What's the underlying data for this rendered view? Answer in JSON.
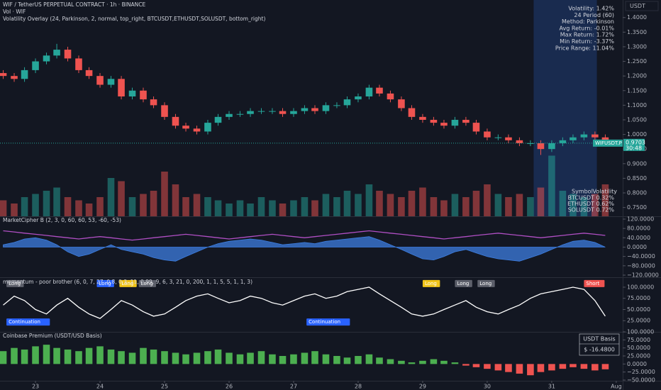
{
  "chart_data": [
    {
      "type": "candlestick",
      "title": "WIF / TetherUS PERPETUAL CONTRACT · 1h · BINANCE",
      "overlay": "Volatility Overlay (24, Parkinson, 2, normal, top_right, BTCUSDT,ETHUSDT,SOLUSDT, bottom_right)",
      "currency": "USDT",
      "x": [
        22.5,
        22.67,
        22.83,
        23,
        23.17,
        23.33,
        23.5,
        23.67,
        23.83,
        24,
        24.17,
        24.33,
        24.5,
        24.67,
        24.83,
        25,
        25.17,
        25.33,
        25.5,
        25.67,
        25.83,
        26,
        26.17,
        26.33,
        26.5,
        26.67,
        26.83,
        27,
        27.17,
        27.33,
        27.5,
        27.67,
        27.83,
        28,
        28.17,
        28.33,
        28.5,
        28.67,
        28.83,
        29,
        29.17,
        29.33,
        29.5,
        29.67,
        29.83,
        30,
        30.17,
        30.33,
        30.5,
        30.67,
        30.83,
        31,
        31.17,
        31.33,
        31.5,
        31.67,
        31.83
      ],
      "open": [
        1.21,
        1.2,
        1.19,
        1.22,
        1.25,
        1.27,
        1.29,
        1.26,
        1.22,
        1.2,
        1.17,
        1.19,
        1.13,
        1.15,
        1.12,
        1.1,
        1.06,
        1.03,
        1.02,
        1.01,
        1.04,
        1.06,
        1.07,
        1.07,
        1.08,
        1.08,
        1.08,
        1.07,
        1.08,
        1.09,
        1.08,
        1.1,
        1.1,
        1.12,
        1.13,
        1.16,
        1.14,
        1.12,
        1.09,
        1.06,
        1.05,
        1.04,
        1.03,
        1.05,
        1.04,
        1.01,
        0.99,
        0.99,
        0.98,
        0.97,
        0.97,
        0.95,
        0.97,
        0.98,
        0.99,
        1.0,
        0.99
      ],
      "high": [
        1.22,
        1.21,
        1.23,
        1.26,
        1.28,
        1.31,
        1.3,
        1.27,
        1.23,
        1.21,
        1.2,
        1.2,
        1.16,
        1.16,
        1.13,
        1.11,
        1.07,
        1.04,
        1.03,
        1.05,
        1.07,
        1.08,
        1.08,
        1.09,
        1.09,
        1.09,
        1.09,
        1.09,
        1.1,
        1.1,
        1.11,
        1.11,
        1.13,
        1.14,
        1.17,
        1.17,
        1.15,
        1.13,
        1.1,
        1.07,
        1.06,
        1.05,
        1.06,
        1.06,
        1.05,
        1.02,
        1.0,
        1.0,
        0.99,
        0.98,
        0.98,
        0.98,
        0.99,
        1.0,
        1.01,
        1.01,
        1.0
      ],
      "low": [
        1.19,
        1.18,
        1.18,
        1.21,
        1.24,
        1.26,
        1.25,
        1.21,
        1.19,
        1.16,
        1.16,
        1.12,
        1.12,
        1.11,
        1.09,
        1.05,
        1.02,
        1.01,
        1.0,
        1.0,
        1.03,
        1.05,
        1.06,
        1.06,
        1.07,
        1.07,
        1.06,
        1.06,
        1.07,
        1.07,
        1.07,
        1.09,
        1.09,
        1.11,
        1.12,
        1.13,
        1.11,
        1.08,
        1.05,
        1.04,
        1.03,
        1.02,
        1.02,
        1.03,
        1.0,
        0.98,
        0.98,
        0.97,
        0.96,
        0.96,
        0.93,
        0.94,
        0.96,
        0.97,
        0.98,
        0.98,
        0.96
      ],
      "close": [
        1.2,
        1.19,
        1.22,
        1.25,
        1.27,
        1.29,
        1.26,
        1.22,
        1.2,
        1.17,
        1.19,
        1.13,
        1.15,
        1.12,
        1.1,
        1.06,
        1.03,
        1.02,
        1.01,
        1.04,
        1.06,
        1.07,
        1.07,
        1.08,
        1.08,
        1.08,
        1.07,
        1.08,
        1.09,
        1.08,
        1.1,
        1.1,
        1.12,
        1.13,
        1.16,
        1.14,
        1.12,
        1.09,
        1.06,
        1.05,
        1.04,
        1.03,
        1.05,
        1.04,
        1.01,
        0.99,
        0.99,
        0.98,
        0.97,
        0.97,
        0.95,
        0.97,
        0.98,
        0.99,
        1.0,
        0.99,
        0.97
      ],
      "up_color": "#26a69a",
      "down_color": "#ef5350",
      "xlim": [
        22.45,
        32.1
      ],
      "ylim": [
        0.72,
        1.46
      ],
      "yticks": [
        {
          "value": 0.75,
          "label": "0.7500"
        },
        {
          "value": 0.8,
          "label": "0.8000"
        },
        {
          "value": 0.85,
          "label": "0.8500"
        },
        {
          "value": 0.9,
          "label": "0.9000"
        },
        {
          "value": 0.95,
          "label": "0.9500"
        },
        {
          "value": 1.0,
          "label": "1.0000"
        },
        {
          "value": 1.05,
          "label": "1.0500"
        },
        {
          "value": 1.1,
          "label": "1.1000"
        },
        {
          "value": 1.15,
          "label": "1.1500"
        },
        {
          "value": 1.2,
          "label": "1.2000"
        },
        {
          "value": 1.25,
          "label": "1.2500"
        },
        {
          "value": 1.3,
          "label": "1.3000"
        },
        {
          "value": 1.35,
          "label": "1.3500"
        },
        {
          "value": 1.4,
          "label": "1.4000"
        }
      ],
      "shaded_x": [
        30.72,
        31.7
      ],
      "last_price": 0.9703,
      "countdown": "30:48",
      "symbol_label": "WIFUSDT.P",
      "volatility_stats": [
        "Volatility: 1.42%",
        "24 Period (60)",
        "Method: Parkinson",
        "Avg Return: -0.01%",
        "Max Return: 1.72%",
        "Min Return: -3.37%",
        "Price Range: 11.04%"
      ],
      "volatility_table": {
        "header": [
          "Symbol",
          "Volatility"
        ],
        "rows": [
          [
            "BTCUSDT",
            "0.32%"
          ],
          [
            "ETHUSDT",
            "0.62%"
          ],
          [
            "SOLUSDT",
            "0.72%"
          ]
        ]
      }
    },
    {
      "type": "bar",
      "title": "Vol · WIF",
      "up_color": "#26a69a80",
      "down_color": "#ef535080",
      "x": [
        22.5,
        22.67,
        22.83,
        23,
        23.17,
        23.33,
        23.5,
        23.67,
        23.83,
        24,
        24.17,
        24.33,
        24.5,
        24.67,
        24.83,
        25,
        25.17,
        25.33,
        25.5,
        25.67,
        25.83,
        26,
        26.17,
        26.33,
        26.5,
        26.67,
        26.83,
        27,
        27.17,
        27.33,
        27.5,
        27.67,
        27.83,
        28,
        28.17,
        28.33,
        28.5,
        28.67,
        28.83,
        29,
        29.17,
        29.33,
        29.5,
        29.67,
        29.83,
        30,
        30.17,
        30.33,
        30.5,
        30.67,
        30.83,
        31,
        31.17,
        31.33,
        31.5,
        31.67,
        31.83
      ],
      "values": [
        25,
        20,
        30,
        35,
        40,
        45,
        30,
        25,
        20,
        30,
        60,
        55,
        30,
        35,
        40,
        70,
        50,
        30,
        35,
        30,
        25,
        20,
        25,
        20,
        30,
        25,
        20,
        25,
        30,
        25,
        35,
        30,
        40,
        35,
        50,
        40,
        35,
        30,
        40,
        45,
        30,
        25,
        35,
        30,
        40,
        50,
        35,
        30,
        35,
        30,
        45,
        95,
        40,
        35,
        30,
        35,
        50
      ],
      "xlim": [
        22.45,
        32.1
      ],
      "ylim": [
        0,
        100
      ]
    },
    {
      "type": "line",
      "title": "MarketCipher B (2, 3, 0, 60, 60, 53, -60, -53)",
      "x": [
        22.5,
        22.67,
        22.83,
        23,
        23.17,
        23.33,
        23.5,
        23.67,
        23.83,
        24,
        24.17,
        24.33,
        24.5,
        24.67,
        24.83,
        25,
        25.17,
        25.33,
        25.5,
        25.67,
        25.83,
        26,
        26.17,
        26.33,
        26.5,
        26.67,
        26.83,
        27,
        27.17,
        27.33,
        27.5,
        27.67,
        27.83,
        28,
        28.17,
        28.33,
        28.5,
        28.67,
        28.83,
        29,
        29.17,
        29.33,
        29.5,
        29.67,
        29.83,
        30,
        30.17,
        30.33,
        30.5,
        30.67,
        30.83,
        31,
        31.17,
        31.33,
        31.5,
        31.67,
        31.83
      ],
      "series": [
        {
          "color": "#3d7ee0",
          "fill": true,
          "values": [
            10,
            20,
            35,
            40,
            30,
            10,
            -20,
            -40,
            -30,
            -10,
            10,
            -10,
            -20,
            -30,
            -45,
            -55,
            -60,
            -40,
            -20,
            0,
            15,
            25,
            30,
            35,
            30,
            20,
            10,
            15,
            20,
            15,
            25,
            30,
            35,
            40,
            45,
            30,
            10,
            -10,
            -30,
            -50,
            -55,
            -40,
            -20,
            -10,
            -25,
            -40,
            -50,
            -55,
            -60,
            -45,
            -30,
            -10,
            10,
            25,
            30,
            20,
            0
          ]
        },
        {
          "color": "#b04fc4",
          "values": [
            70,
            65,
            60,
            55,
            50,
            45,
            40,
            35,
            40,
            45,
            40,
            35,
            30,
            35,
            40,
            45,
            50,
            55,
            50,
            45,
            40,
            35,
            40,
            45,
            50,
            55,
            50,
            45,
            40,
            45,
            50,
            55,
            60,
            65,
            70,
            65,
            60,
            55,
            50,
            45,
            40,
            35,
            40,
            45,
            50,
            55,
            60,
            55,
            50,
            45,
            40,
            45,
            50,
            55,
            60,
            55,
            50
          ]
        }
      ],
      "xlim": [
        22.45,
        32.1
      ],
      "ylim": [
        -120,
        120
      ],
      "yticks": [
        {
          "value": 120,
          "label": "120.0000"
        },
        {
          "value": 80,
          "label": "80.0000"
        },
        {
          "value": 40,
          "label": "40.0000"
        },
        {
          "value": 0,
          "label": "0.0000"
        },
        {
          "value": -40,
          "label": "−40.0000"
        },
        {
          "value": -80,
          "label": "−80.0000"
        },
        {
          "value": -120,
          "label": "−120.0000"
        }
      ]
    },
    {
      "type": "line",
      "title": "momentum - poor brother (6, 0, 7, 27, 0.8, 0.3, 11, 0.99, 9, 6, 3, 21, 0, 200, 1, 1, 5, 5, 1, 1, 3)",
      "x": [
        22.5,
        22.67,
        22.83,
        23,
        23.17,
        23.33,
        23.5,
        23.67,
        23.83,
        24,
        24.17,
        24.33,
        24.5,
        24.67,
        24.83,
        25,
        25.17,
        25.33,
        25.5,
        25.67,
        25.83,
        26,
        26.17,
        26.33,
        26.5,
        26.67,
        26.83,
        27,
        27.17,
        27.33,
        27.5,
        27.67,
        27.83,
        28,
        28.17,
        28.33,
        28.5,
        28.67,
        28.83,
        29,
        29.17,
        29.33,
        29.5,
        29.67,
        29.83,
        30,
        30.17,
        30.33,
        30.5,
        30.67,
        30.83,
        31,
        31.17,
        31.33,
        31.5,
        31.67,
        31.83
      ],
      "series": [
        {
          "color": "#ffffff",
          "values": [
            60,
            80,
            70,
            50,
            40,
            60,
            75,
            55,
            40,
            30,
            50,
            70,
            60,
            45,
            35,
            40,
            55,
            70,
            80,
            85,
            75,
            65,
            70,
            80,
            75,
            65,
            60,
            70,
            80,
            85,
            75,
            80,
            90,
            95,
            100,
            85,
            70,
            55,
            40,
            35,
            40,
            50,
            60,
            70,
            55,
            45,
            40,
            50,
            60,
            75,
            85,
            90,
            95,
            100,
            95,
            70,
            35
          ]
        }
      ],
      "annotations": [
        {
          "text": "Long",
          "x": 22.55,
          "y": 108,
          "color": "#5d606b"
        },
        {
          "text": "Long",
          "x": 23.95,
          "y": 108,
          "color": "#2962ff"
        },
        {
          "text": "Long",
          "x": 24.3,
          "y": 108,
          "color": "#f0c419"
        },
        {
          "text": "Long",
          "x": 24.6,
          "y": 108,
          "color": "#5d606b"
        },
        {
          "text": "Long",
          "x": 29.0,
          "y": 108,
          "color": "#f0c419"
        },
        {
          "text": "Long",
          "x": 29.5,
          "y": 108,
          "color": "#5d606b"
        },
        {
          "text": "Long",
          "x": 29.85,
          "y": 108,
          "color": "#5d606b"
        },
        {
          "text": "Short",
          "x": 31.5,
          "y": 108,
          "color": "#ef5350"
        },
        {
          "text": "Continuation",
          "x": 22.55,
          "y": 22,
          "color": "#2962ff"
        },
        {
          "text": "Continuation",
          "x": 27.2,
          "y": 22,
          "color": "#2962ff"
        }
      ],
      "xlim": [
        22.45,
        32.1
      ],
      "ylim": [
        0,
        119
      ],
      "yticks": [
        {
          "value": 100,
          "label": "100.0000"
        },
        {
          "value": 75,
          "label": "75.0000"
        },
        {
          "value": 50,
          "label": "50.0000"
        },
        {
          "value": 25,
          "label": "25.0000"
        }
      ]
    },
    {
      "type": "bar",
      "title": "Coinbase Premium (USDT/USD Basis)",
      "color": "#4caf50",
      "negative_color": "#ef5350",
      "basis_title": "USDT Basis",
      "basis_label": "$ -16.4800",
      "x": [
        22.5,
        22.67,
        22.83,
        23,
        23.17,
        23.33,
        23.5,
        23.67,
        23.83,
        24,
        24.17,
        24.33,
        24.5,
        24.67,
        24.83,
        25,
        25.17,
        25.33,
        25.5,
        25.67,
        25.83,
        26,
        26.17,
        26.33,
        26.5,
        26.67,
        26.83,
        27,
        27.17,
        27.33,
        27.5,
        27.67,
        27.83,
        28,
        28.17,
        28.33,
        28.5,
        28.67,
        28.83,
        29,
        29.17,
        29.33,
        29.5,
        29.67,
        29.83,
        30,
        30.17,
        30.33,
        30.5,
        30.67,
        30.83,
        31,
        31.17,
        31.33,
        31.5,
        31.67,
        31.83
      ],
      "values": [
        40,
        50,
        45,
        55,
        60,
        50,
        45,
        40,
        50,
        55,
        45,
        40,
        35,
        50,
        45,
        40,
        35,
        30,
        35,
        40,
        45,
        35,
        30,
        35,
        40,
        30,
        25,
        30,
        35,
        40,
        30,
        25,
        20,
        25,
        30,
        20,
        15,
        10,
        5,
        10,
        15,
        10,
        5,
        -5,
        -10,
        -15,
        -20,
        -25,
        -30,
        -35,
        -25,
        -20,
        -15,
        -10,
        -15,
        -20,
        -16.48
      ],
      "xlim": [
        22.45,
        32.1
      ],
      "ylim": [
        -50,
        100
      ],
      "yticks": [
        {
          "value": 100,
          "label": "100.0000"
        },
        {
          "value": 75,
          "label": "75.0000"
        },
        {
          "value": 50,
          "label": "50.0000"
        },
        {
          "value": 25,
          "label": "25.0000"
        },
        {
          "value": 0,
          "label": "0.0000"
        },
        {
          "value": -25,
          "label": "−25.0000"
        },
        {
          "value": -50,
          "label": "−50.0000"
        }
      ],
      "xticks": [
        23,
        24,
        25,
        26,
        27,
        28,
        29,
        30,
        31,
        {
          "value": 32,
          "label": "Aug"
        }
      ]
    }
  ]
}
